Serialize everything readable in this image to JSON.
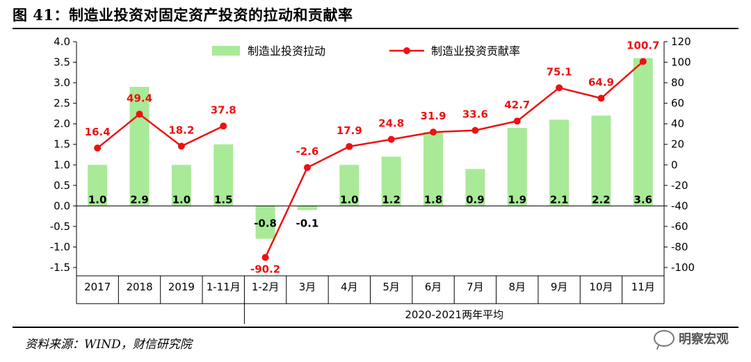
{
  "header": {
    "title": "图 41：制造业投资对固定资产投资的拉动和贡献率"
  },
  "footer": {
    "source": "资料来源：WIND，财信研究院",
    "watermark": "明察宏观"
  },
  "chart_data": {
    "type": "bar+line",
    "categories": [
      "2017",
      "2018",
      "2019",
      "1-11月",
      "1-2月",
      "3月",
      "4月",
      "5月",
      "6月",
      "7月",
      "8月",
      "9月",
      "10月",
      "11月"
    ],
    "group_label": "2020-2021两年平均",
    "group_start_index": 4,
    "series": [
      {
        "name": "制造业投资拉动",
        "type": "bar",
        "axis": "left",
        "color": "#a8ea98",
        "values": [
          1.0,
          2.9,
          1.0,
          1.5,
          -0.8,
          -0.1,
          1.0,
          1.2,
          1.8,
          0.9,
          1.9,
          2.1,
          2.2,
          3.6
        ],
        "labels": [
          "1.0",
          "2.9",
          "1.0",
          "1.5",
          "-0.8",
          "-0.1",
          "1.0",
          "1.2",
          "1.8",
          "0.9",
          "1.9",
          "2.1",
          "2.2",
          "3.6"
        ]
      },
      {
        "name": "制造业投资贡献率",
        "type": "line",
        "axis": "right",
        "color": "#ee1111",
        "values": [
          16.4,
          49.4,
          18.2,
          37.8,
          -90.2,
          -2.6,
          17.9,
          24.8,
          31.9,
          33.6,
          42.7,
          75.1,
          64.9,
          100.7
        ],
        "labels": [
          "16.4",
          "49.4",
          "18.2",
          "37.8",
          "-90.2",
          "-2.6",
          "17.9",
          "24.8",
          "31.9",
          "33.6",
          "42.7",
          "75.1",
          "64.9",
          "100.7"
        ]
      }
    ],
    "line_break_after_index": 3,
    "y_left": {
      "min": -1.5,
      "max": 4.0,
      "step": 0.5,
      "ticks": [
        "4.0",
        "3.5",
        "3.0",
        "2.5",
        "2.0",
        "1.5",
        "1.0",
        "0.5",
        "0.0",
        "-0.5",
        "-1.0",
        "-1.5"
      ]
    },
    "y_right": {
      "min": -100,
      "max": 120,
      "step": 20,
      "ticks": [
        "120",
        "100",
        "80",
        "60",
        "40",
        "20",
        "0",
        "-20",
        "-40",
        "-60",
        "-80",
        "-100"
      ]
    },
    "legend_position": "top"
  }
}
